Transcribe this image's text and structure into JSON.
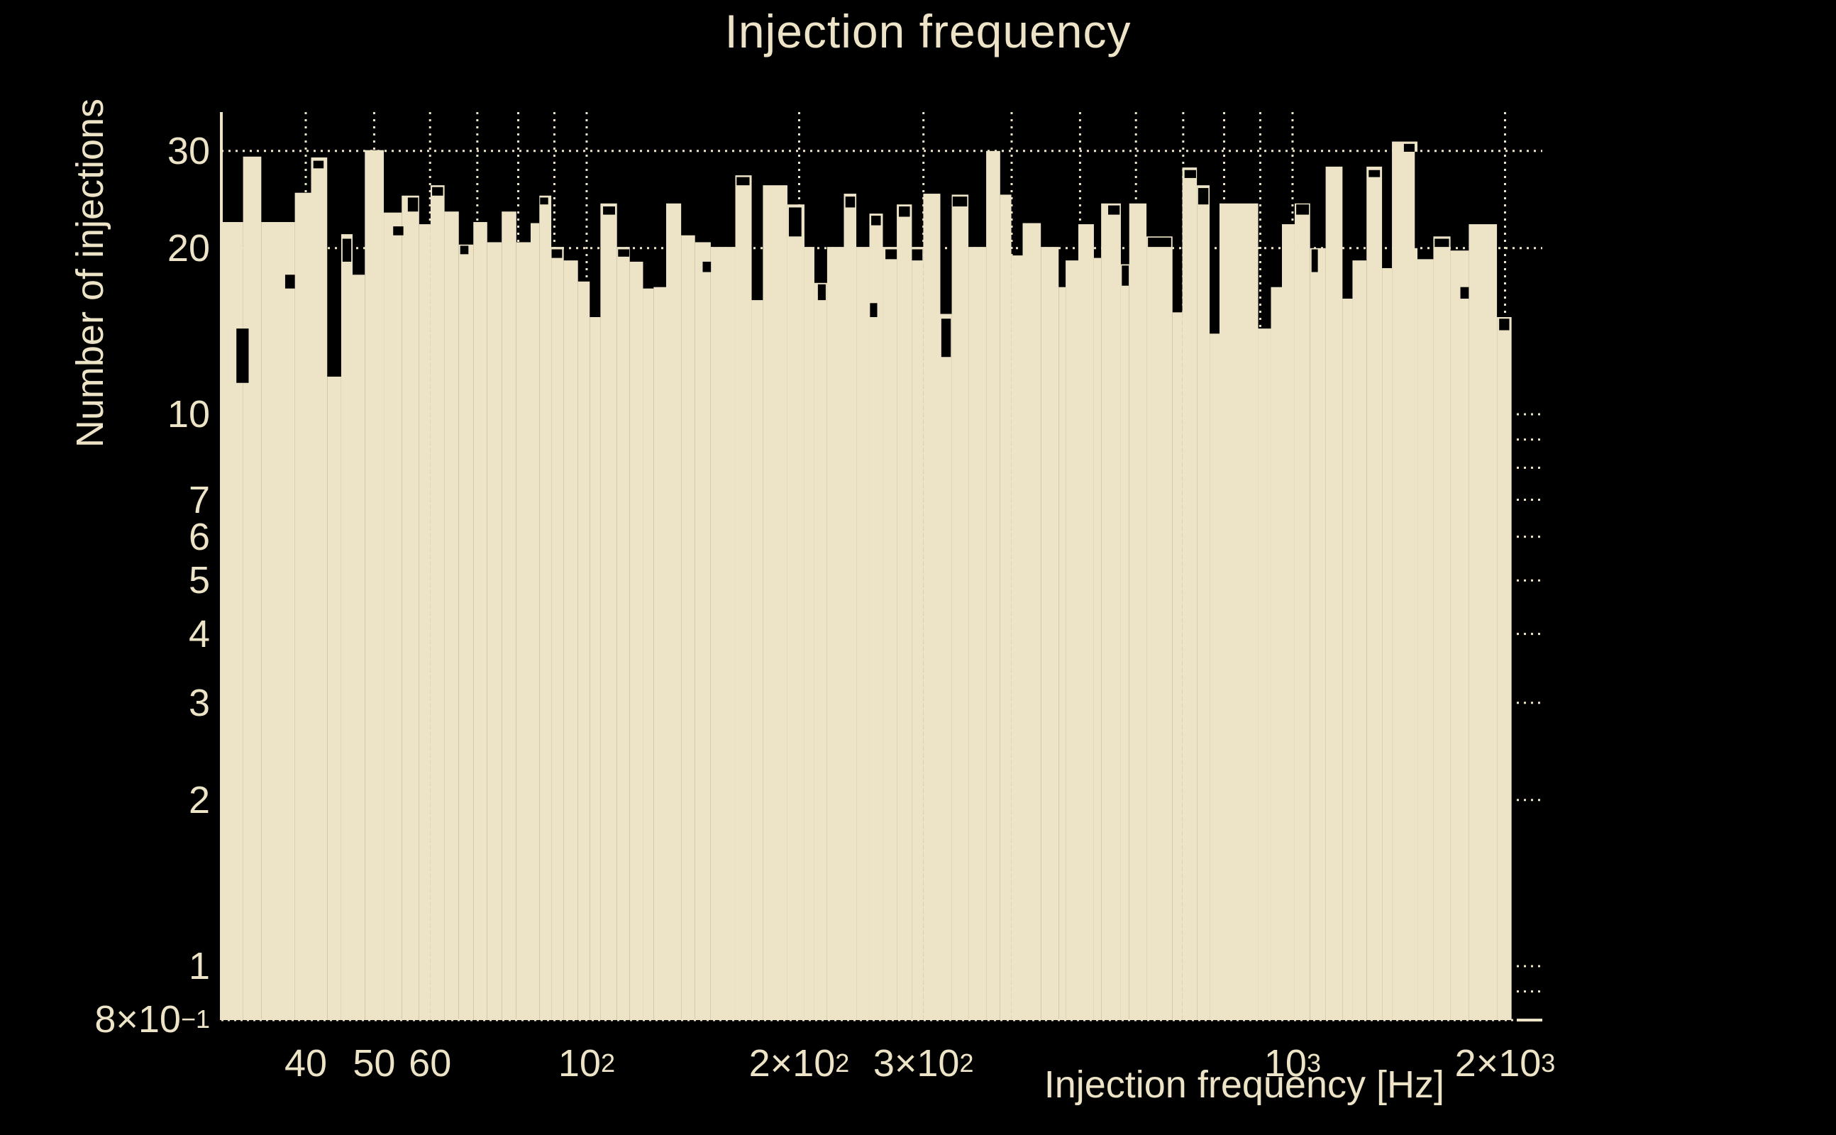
{
  "title": "Injection frequency",
  "chart_data": {
    "type": "bar",
    "subtype": "log-log histogram",
    "title": "Injection frequency",
    "xlabel": "Injection frequency [Hz]",
    "ylabel": "Number of injections",
    "x_scale": "log",
    "y_scale": "log",
    "x_range_hz": [
      30.4,
      2258
    ],
    "y_range_counts": [
      0.8,
      35.3
    ],
    "grid": "dotted",
    "colors": {
      "background": "#000000",
      "foreground": "#EDE3C6"
    },
    "x_tick_labels": [
      {
        "f": 40,
        "pre": "40",
        "sup": ""
      },
      {
        "f": 50,
        "pre": "50",
        "sup": ""
      },
      {
        "f": 60,
        "pre": "60",
        "sup": ""
      },
      {
        "f": 100,
        "pre": "10",
        "sup": "2"
      },
      {
        "f": 200,
        "pre": "2×10",
        "sup": "2"
      },
      {
        "f": 300,
        "pre": "3×10",
        "sup": "2"
      },
      {
        "f": 1000,
        "pre": "10",
        "sup": "3"
      },
      {
        "f": 2000,
        "pre": "2×10",
        "sup": "3"
      }
    ],
    "y_tick_labels": [
      {
        "v": 30,
        "pre": "30",
        "sup": ""
      },
      {
        "v": 20,
        "pre": "20",
        "sup": ""
      },
      {
        "v": 10,
        "pre": "10",
        "sup": ""
      },
      {
        "v": 7,
        "pre": "7",
        "sup": ""
      },
      {
        "v": 6,
        "pre": "6",
        "sup": ""
      },
      {
        "v": 5,
        "pre": "5",
        "sup": ""
      },
      {
        "v": 4,
        "pre": "4",
        "sup": ""
      },
      {
        "v": 3,
        "pre": "3",
        "sup": ""
      },
      {
        "v": 2,
        "pre": "2",
        "sup": ""
      },
      {
        "v": 1,
        "pre": "1",
        "sup": ""
      },
      {
        "v": 0.8,
        "pre": "8×10",
        "sup": "−1"
      }
    ],
    "x_gridlines_hz": [
      40,
      50,
      60,
      70,
      80,
      90,
      100,
      200,
      300,
      400,
      500,
      600,
      700,
      800,
      900,
      1000,
      2000
    ],
    "y_gridlines_full": [
      30,
      20
    ],
    "y_gridlines_right_stub": [
      10,
      9,
      8,
      7,
      6,
      5,
      4,
      3,
      2,
      1,
      0.9
    ],
    "bins": [
      [
        30.4,
        32.6,
        22.3
      ],
      [
        32.6,
        34.6,
        29.3
      ],
      [
        34.6,
        38.6,
        22.3
      ],
      [
        38.6,
        40.7,
        25.2
      ],
      [
        40.7,
        42.9,
        29.2
      ],
      [
        42.9,
        44.9,
        11.7
      ],
      [
        44.9,
        46.6,
        21.2
      ],
      [
        46.6,
        48.5,
        17.9
      ],
      [
        48.5,
        51.6,
        30.1
      ],
      [
        51.6,
        54.7,
        23.2
      ],
      [
        54.7,
        57.9,
        24.9
      ],
      [
        57.9,
        60.1,
        22.1
      ],
      [
        60.1,
        62.9,
        26.0
      ],
      [
        62.9,
        65.9,
        23.3
      ],
      [
        65.9,
        69.1,
        20.3
      ],
      [
        69.1,
        72.3,
        22.3
      ],
      [
        72.3,
        75.8,
        20.5
      ],
      [
        75.8,
        79.5,
        23.3
      ],
      [
        79.5,
        83.3,
        20.5
      ],
      [
        83.3,
        85.7,
        22.2
      ],
      [
        85.7,
        89.1,
        24.9
      ],
      [
        89.1,
        92.8,
        20.1
      ],
      [
        92.8,
        97.2,
        19.0
      ],
      [
        97.2,
        101.0,
        17.4
      ],
      [
        101.0,
        104.6,
        15.0
      ],
      [
        104.6,
        110.4,
        24.1
      ],
      [
        110.4,
        115.1,
        20.1
      ],
      [
        115.1,
        120.2,
        18.9
      ],
      [
        120.2,
        124.4,
        16.9
      ],
      [
        124.4,
        129.6,
        17.0
      ],
      [
        129.6,
        136.1,
        24.1
      ],
      [
        136.1,
        142.4,
        21.1
      ],
      [
        142.4,
        149.9,
        20.5
      ],
      [
        149.9,
        162.4,
        20.1
      ],
      [
        162.4,
        171.3,
        27.1
      ],
      [
        171.3,
        177.7,
        16.1
      ],
      [
        177.7,
        192.5,
        26.0
      ],
      [
        192.5,
        203.5,
        24.0
      ],
      [
        203.5,
        210.2,
        20.1
      ],
      [
        210.2,
        219.1,
        17.3
      ],
      [
        219.1,
        231.4,
        20.1
      ],
      [
        231.4,
        241.0,
        25.1
      ],
      [
        241.0,
        251.5,
        20.1
      ],
      [
        251.5,
        262.8,
        23.1
      ],
      [
        262.8,
        275.0,
        20.1
      ],
      [
        275.0,
        288.9,
        24.0
      ],
      [
        288.9,
        299.8,
        20.1
      ],
      [
        299.8,
        317.0,
        25.1
      ],
      [
        317.0,
        329.0,
        15.2
      ],
      [
        329.0,
        347.4,
        25.0
      ],
      [
        347.4,
        368.1,
        20.1
      ],
      [
        368.1,
        385.3,
        30.0
      ],
      [
        385.3,
        399.6,
        25.0
      ],
      [
        399.6,
        414.6,
        19.4
      ],
      [
        414.6,
        440.0,
        22.2
      ],
      [
        440.0,
        466.3,
        20.1
      ],
      [
        466.3,
        477.0,
        17.0
      ],
      [
        477.0,
        497.2,
        19.0
      ],
      [
        497.2,
        523.1,
        22.1
      ],
      [
        523.1,
        535.6,
        19.2
      ],
      [
        535.6,
        571.2,
        24.1
      ],
      [
        571.2,
        587.0,
        18.7
      ],
      [
        587,
        621,
        24.1
      ],
      [
        621,
        676,
        21.0
      ],
      [
        676,
        698,
        15.3
      ],
      [
        698,
        732,
        28.0
      ],
      [
        732,
        763,
        26.0
      ],
      [
        763,
        788,
        14.0
      ],
      [
        788,
        894,
        24.1
      ],
      [
        894,
        932,
        14.3
      ],
      [
        932,
        966,
        17.0
      ],
      [
        966,
        1007,
        22.1
      ],
      [
        1007,
        1059,
        24.1
      ],
      [
        1059,
        1114,
        20.0
      ],
      [
        1114,
        1177,
        28.1
      ],
      [
        1177,
        1216,
        16.2
      ],
      [
        1216,
        1273,
        19.0
      ],
      [
        1273,
        1339,
        28.1
      ],
      [
        1339,
        1383,
        18.4
      ],
      [
        1383,
        1503,
        31.2
      ],
      [
        1503,
        1583,
        19.1
      ],
      [
        1583,
        1674,
        21.0
      ],
      [
        1674,
        1777,
        19.8
      ],
      [
        1777,
        1948,
        22.1
      ],
      [
        1948,
        2043,
        15.0
      ]
    ],
    "overlay_marks": [
      [
        31.9,
        33.2,
        14.3,
        11.4
      ],
      [
        37.4,
        38.6,
        17.9,
        16.9
      ],
      [
        41.0,
        42.4,
        28.8,
        27.9
      ],
      [
        45.1,
        46.4,
        20.8,
        18.9
      ],
      [
        53.2,
        55.0,
        21.9,
        21.1
      ],
      [
        55.8,
        57.7,
        24.7,
        23.3
      ],
      [
        60.4,
        62.6,
        25.8,
        24.9
      ],
      [
        66.2,
        68.0,
        20.2,
        19.5
      ],
      [
        85.9,
        88.2,
        24.7,
        24.0
      ],
      [
        89.2,
        92.3,
        19.9,
        19.2
      ],
      [
        105.5,
        109.7,
        23.8,
        23.0
      ],
      [
        110.8,
        114.9,
        19.9,
        19.3
      ],
      [
        146,
        150,
        18.9,
        18.1
      ],
      [
        163.1,
        170.1,
        26.9,
        26.0
      ],
      [
        193.4,
        201.5,
        23.7,
        21.0
      ],
      [
        212.6,
        218.1,
        17.2,
        16.1
      ],
      [
        232.6,
        240.0,
        24.8,
        23.7
      ],
      [
        253,
        261,
        22.9,
        22.0
      ],
      [
        252,
        258,
        15.9,
        15.0
      ],
      [
        265,
        275,
        19.9,
        19.1
      ],
      [
        276.9,
        287.0,
        23.8,
        22.8
      ],
      [
        289,
        299,
        19.9,
        19.0
      ],
      [
        318,
        328,
        14.9,
        12.7
      ],
      [
        330,
        346,
        24.8,
        23.8
      ],
      [
        548,
        569,
        23.9,
        23.0
      ],
      [
        573,
        586,
        18.6,
        17.1
      ],
      [
        624,
        673,
        20.9,
        20.1
      ],
      [
        703,
        730,
        27.7,
        26.8
      ],
      [
        735,
        760,
        25.7,
        24.0
      ],
      [
        1012,
        1055,
        24.0,
        23.0
      ],
      [
        1064,
        1086,
        19.9,
        18.1
      ],
      [
        1282,
        1330,
        27.7,
        26.9
      ],
      [
        1438,
        1489,
        30.9,
        29.9
      ],
      [
        1490,
        1503,
        29.9,
        20.0
      ],
      [
        1590,
        1666,
        20.8,
        20.1
      ],
      [
        1729,
        1777,
        17.0,
        16.2
      ],
      [
        1962,
        2028,
        14.9,
        14.2
      ]
    ]
  }
}
